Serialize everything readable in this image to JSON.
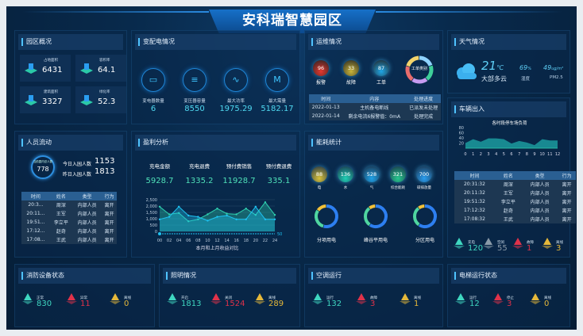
{
  "header": {
    "title": "安科瑞智慧园区"
  },
  "overview": {
    "title": "园区概况",
    "items": [
      {
        "label": "占地面积",
        "value": "6431"
      },
      {
        "label": "容积率",
        "value": "64.1"
      },
      {
        "label": "建筑面积",
        "value": "3327"
      },
      {
        "label": "绿化率",
        "value": "52.3"
      }
    ]
  },
  "power": {
    "title": "变配电情况",
    "items": [
      {
        "label": "变电器数量",
        "value": "6",
        "icon": "transformer-icon"
      },
      {
        "label": "变压器容量",
        "value": "8550",
        "icon": "capacity-icon"
      },
      {
        "label": "最大功率",
        "value": "1975.29",
        "icon": "pulse-icon"
      },
      {
        "label": "最大需量",
        "value": "5182.17",
        "icon": "demand-icon"
      }
    ]
  },
  "ops": {
    "title": "运维情况",
    "balls": [
      {
        "label": "报警",
        "value": "96",
        "color": "#e5382f"
      },
      {
        "label": "故障",
        "value": "33",
        "color": "#c9b53a"
      },
      {
        "label": "工单",
        "value": "87",
        "color": "#1fa6e6"
      }
    ],
    "donut_label": "工单类别",
    "donut_colors": [
      "#8fd3ff",
      "#3ecf9a",
      "#c79bf0",
      "#e86c6c",
      "#f2d36b"
    ],
    "columns": [
      "时间",
      "内容",
      "处理进度"
    ],
    "rows": [
      [
        "2022-01-13",
        "主机备电断线",
        "已派发未处理"
      ],
      [
        "2022-01-14",
        "剩余电流6报警值：0mA",
        "处理完成"
      ]
    ]
  },
  "weather": {
    "title": "天气情况",
    "temp": "21",
    "temp_unit": "℃",
    "desc": "大部多云",
    "humidity": "69",
    "humidity_unit": "%",
    "humidity_label": "湿度",
    "pm": "49",
    "pm_unit": "ug/m³",
    "pm_label": "PM2.5"
  },
  "people": {
    "title": "人员流动",
    "circle_label": "当前园内总人数",
    "circle_value": "778",
    "today_label": "今日入园人数",
    "today_value": "1153",
    "yesterday_label": "昨日入园人数",
    "yesterday_value": "1813",
    "columns": [
      "时间",
      "姓名",
      "类型",
      "行为"
    ],
    "rows": [
      [
        "20:3...",
        "周深",
        "内部人员",
        "离开"
      ],
      [
        "20:11...",
        "王军",
        "内部人员",
        "离开"
      ],
      [
        "19:51...",
        "李立平",
        "内部人员",
        "离开"
      ],
      [
        "17:12...",
        "赵奇",
        "内部人员",
        "离开"
      ],
      [
        "17:08...",
        "王武",
        "内部人员",
        "离开"
      ]
    ]
  },
  "profit": {
    "title": "盈利分析",
    "items": [
      {
        "label": "充电金额",
        "value": "5928.7"
      },
      {
        "label": "充电退费",
        "value": "1335.2"
      },
      {
        "label": "预付费销售",
        "value": "11928.7"
      },
      {
        "label": "预付费退费",
        "value": "335.1"
      }
    ],
    "slider_value": "50"
  },
  "energy": {
    "title": "能耗统计",
    "balls": [
      {
        "label": "电",
        "value": "88",
        "color": "#d9c23a"
      },
      {
        "label": "水",
        "value": "136",
        "color": "#20d0b5"
      },
      {
        "label": "气",
        "value": "528",
        "color": "#1fa2e8"
      },
      {
        "label": "综合能耗",
        "value": "321",
        "color": "#27c88e"
      },
      {
        "label": "碳排放量",
        "value": "700",
        "color": "#2a9ef0"
      }
    ],
    "donuts": [
      {
        "label": "分项用电",
        "parts": [
          0.55,
          0.3,
          0.15
        ]
      },
      {
        "label": "峰谷平用电",
        "parts": [
          0.6,
          0.3,
          0.1
        ]
      },
      {
        "label": "分区用电",
        "parts": [
          0.6,
          0.3,
          0.1
        ]
      }
    ],
    "donut_colors": [
      "#2d7ff0",
      "#4fd6a0",
      "#f2c23a"
    ]
  },
  "vehicle": {
    "title": "车辆出入",
    "columns": [
      "时间",
      "姓名",
      "类型",
      "行为"
    ],
    "rows": [
      [
        "20:31:32",
        "周深",
        "内部人员",
        "离开"
      ],
      [
        "20:11:32",
        "王军",
        "内部人员",
        "离开"
      ],
      [
        "19:51:32",
        "李立平",
        "内部人员",
        "离开"
      ],
      [
        "17:12:32",
        "赵奇",
        "内部人员",
        "离开"
      ],
      [
        "17:08:32",
        "王武",
        "内部人员",
        "离开"
      ]
    ],
    "stats": [
      {
        "label": "充电",
        "value": "120",
        "color": "#3fd6c0"
      },
      {
        "label": "空闲",
        "value": "55",
        "color": "#8a9aa8"
      },
      {
        "label": "故障",
        "value": "1",
        "color": "#e0324a"
      },
      {
        "label": "离线",
        "value": "3",
        "color": "#e5b83a"
      }
    ]
  },
  "fire": {
    "title": "消防设备状态",
    "stats": [
      {
        "label": "正常",
        "value": "830",
        "color": "#3fd6c0"
      },
      {
        "label": "异常",
        "value": "11",
        "color": "#e0324a"
      },
      {
        "label": "离线",
        "value": "0",
        "color": "#e5b83a"
      }
    ]
  },
  "lighting": {
    "title": "照明情况",
    "stats": [
      {
        "label": "开启",
        "value": "1813",
        "color": "#3fd6c0"
      },
      {
        "label": "关闭",
        "value": "1524",
        "color": "#e0324a"
      },
      {
        "label": "离线",
        "value": "289",
        "color": "#e5b83a"
      }
    ]
  },
  "hvac": {
    "title": "空调运行",
    "stats": [
      {
        "label": "运行",
        "value": "132",
        "color": "#3fd6c0"
      },
      {
        "label": "故障",
        "value": "3",
        "color": "#e0324a"
      },
      {
        "label": "离线",
        "value": "1",
        "color": "#e5b83a"
      }
    ]
  },
  "elevator": {
    "title": "电梯运行状态",
    "stats": [
      {
        "label": "运行",
        "value": "12",
        "color": "#3fd6c0"
      },
      {
        "label": "停止",
        "value": "3",
        "color": "#e0324a"
      },
      {
        "label": "离线",
        "value": "0",
        "color": "#e5b83a"
      }
    ]
  },
  "chart_data": [
    {
      "type": "line",
      "title": "",
      "xlabel": "本月和上月收益对比",
      "ylabel": "",
      "categories": [
        "00",
        "02",
        "04",
        "06",
        "08",
        "10",
        "12",
        "14",
        "16",
        "18",
        "20",
        "22",
        "24"
      ],
      "ylim": [
        0,
        2500
      ],
      "yticks": [
        "0",
        "500",
        "1,000",
        "1,500",
        "2,000",
        "2,500"
      ],
      "grid": true,
      "series": [
        {
          "color": "#2fd1b0",
          "values": [
            1950,
            1350,
            1450,
            800,
            950,
            1350,
            1800,
            1400,
            1350,
            1800,
            1300,
            2300,
            1300
          ]
        },
        {
          "color": "#1ec3f2",
          "values": [
            950,
            1150,
            1950,
            1250,
            1150,
            850,
            1150,
            1250,
            950,
            950,
            1950,
            950,
            950
          ]
        }
      ]
    },
    {
      "type": "area",
      "title": "各时段停车场负荷",
      "categories": [
        "0",
        "1",
        "2",
        "3",
        "4",
        "5",
        "6",
        "7",
        "8",
        "9",
        "10",
        "11",
        "12"
      ],
      "ylim": [
        0,
        80
      ],
      "yticks": [
        "20",
        "40",
        "60",
        "80"
      ],
      "values": [
        20,
        35,
        25,
        38,
        38,
        35,
        18,
        28,
        22,
        12,
        35,
        30,
        30
      ],
      "color": "#1fb4b0"
    }
  ]
}
